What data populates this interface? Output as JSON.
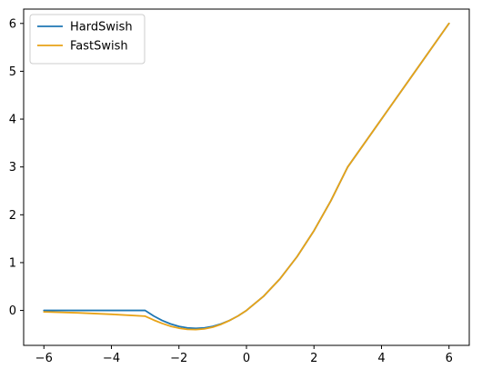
{
  "chart_data": {
    "type": "line",
    "title": "",
    "xlabel": "",
    "ylabel": "",
    "xlim": [
      -6.6,
      6.6
    ],
    "ylim": [
      -0.73,
      6.3
    ],
    "x_ticks": [
      -6,
      -4,
      -2,
      0,
      2,
      4,
      6
    ],
    "y_ticks": [
      0,
      1,
      2,
      3,
      4,
      5,
      6
    ],
    "x_tick_labels": [
      "−6",
      "−4",
      "−2",
      "0",
      "2",
      "4",
      "6"
    ],
    "y_tick_labels": [
      "0",
      "1",
      "2",
      "3",
      "4",
      "5",
      "6"
    ],
    "grid": false,
    "legend_position": "top-left",
    "series": [
      {
        "name": "HardSwish",
        "color": "#1f77b4",
        "x": [
          -6,
          -5,
          -4,
          -3,
          -2.75,
          -2.5,
          -2.25,
          -2,
          -1.75,
          -1.5,
          -1.25,
          -1,
          -0.75,
          -0.5,
          -0.25,
          0,
          0.5,
          1,
          1.5,
          2,
          2.5,
          3,
          4,
          5,
          6
        ],
        "y": [
          0,
          0,
          0,
          0,
          -0.115,
          -0.208,
          -0.281,
          -0.333,
          -0.365,
          -0.375,
          -0.365,
          -0.333,
          -0.281,
          -0.208,
          -0.115,
          0,
          0.292,
          0.667,
          1.125,
          1.667,
          2.292,
          3,
          4,
          5,
          6
        ]
      },
      {
        "name": "FastSwish",
        "color": "#e8a317",
        "x": [
          -6,
          -5,
          -4,
          -3,
          -2.75,
          -2.5,
          -2.25,
          -2,
          -1.75,
          -1.5,
          -1.25,
          -1,
          -0.75,
          -0.5,
          -0.25,
          0,
          0.5,
          1,
          1.5,
          2,
          2.5,
          3,
          4,
          5,
          6
        ],
        "y": [
          -0.03,
          -0.05,
          -0.08,
          -0.12,
          -0.2,
          -0.27,
          -0.33,
          -0.37,
          -0.395,
          -0.4,
          -0.385,
          -0.35,
          -0.29,
          -0.21,
          -0.115,
          0,
          0.292,
          0.667,
          1.125,
          1.667,
          2.292,
          3,
          4,
          5,
          6
        ]
      }
    ]
  }
}
